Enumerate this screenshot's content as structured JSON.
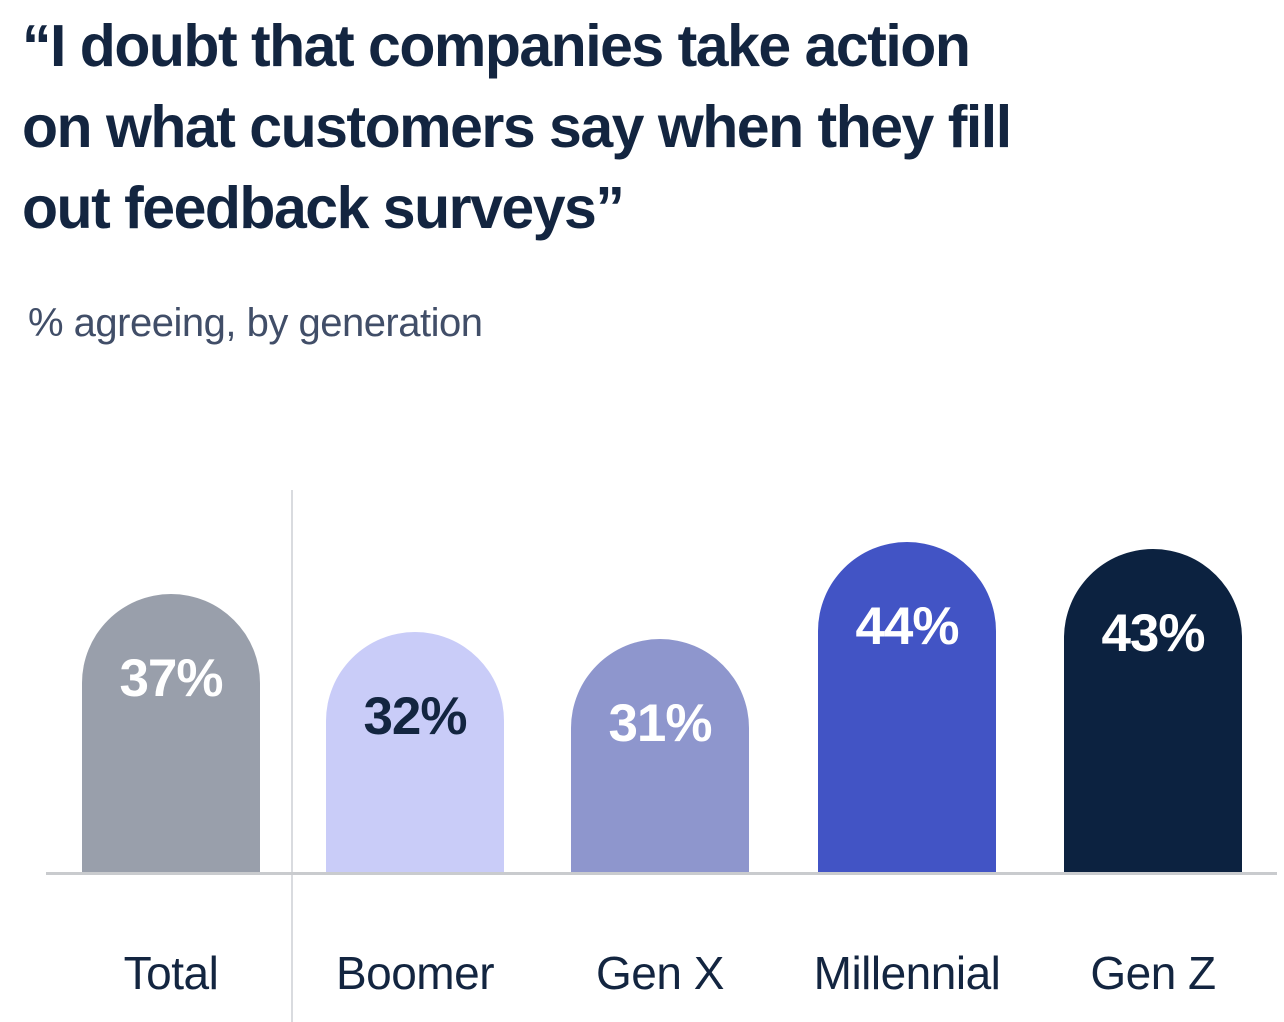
{
  "title": "“I doubt that companies take action on what customers say when they fill out feedback surveys”",
  "title_lines": [
    "“I doubt that companies take action",
    "on what customers say when they fill",
    "out feedback surveys”"
  ],
  "subtitle": "% agreeing, by generation",
  "chart_data": {
    "type": "bar",
    "title": "“I doubt that companies take action on what customers say when they fill out feedback surveys”",
    "subtitle": "% agreeing, by generation",
    "categories": [
      "Total",
      "Boomer",
      "Gen X",
      "Millennial",
      "Gen Z"
    ],
    "values": [
      37,
      32,
      31,
      44,
      43
    ],
    "value_labels": [
      "37%",
      "32%",
      "31%",
      "44%",
      "43%"
    ],
    "unit": "%",
    "ylim": [
      0,
      50
    ],
    "grid": "off",
    "legend": "none",
    "bar_shape": "rounded-top",
    "separator_after_category": "Total",
    "bar_colors": [
      "#999FAB",
      "#C9CCF8",
      "#8E96CD",
      "#4254C5",
      "#0C2240"
    ],
    "value_label_colors": [
      "#FFFFFF",
      "#132540",
      "#FFFFFF",
      "#FFFFFF",
      "#FFFFFF"
    ]
  },
  "colors": {
    "background": "#FFFFFF",
    "title_text": "#132540",
    "subtitle_text": "#414E68",
    "axis_line": "#C9CBCE",
    "divider_line": "#D9DBDF",
    "category_label_text": "#132540"
  }
}
